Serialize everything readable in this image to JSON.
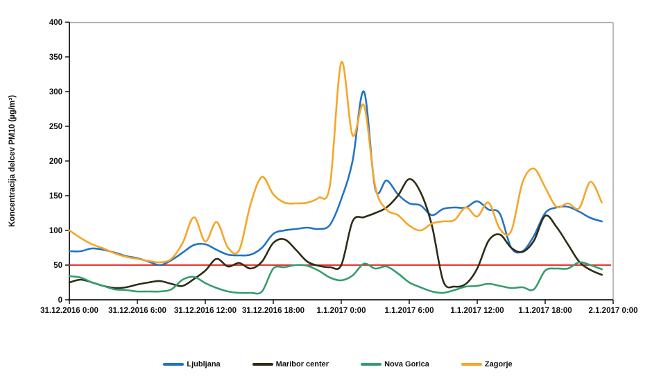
{
  "chart_data": {
    "type": "line",
    "title": "",
    "ylabel": "Koncentracija delcev PM10 (µg/m³)",
    "xlabel": "",
    "ylim": [
      0,
      400
    ],
    "y_ticks": [
      0,
      50,
      100,
      150,
      200,
      250,
      300,
      350,
      400
    ],
    "x_tick_labels": [
      "31.12.2016 0:00",
      "31.12.2016 6:00",
      "31.12.2016 12:00",
      "31.12.2016 18:00",
      "1.1.2017 0:00",
      "1.1.2017 6:00",
      "1.1.2017 12:00",
      "1.1.2017 18:00",
      "2.1.2017 0:00"
    ],
    "x_tick_step_hours": 6,
    "x_total_hours": 48,
    "x_sample_interval_hours": 1,
    "grid": false,
    "legend_position": "bottom",
    "smoothing": "spline",
    "reference_line": {
      "name": "daily-limit-line",
      "value": 50,
      "color": "#e93330"
    },
    "series": [
      {
        "name": "Ljubljana",
        "color": "#2273c4",
        "values": [
          70,
          70,
          74,
          72,
          68,
          63,
          60,
          55,
          50,
          57,
          68,
          79,
          80,
          72,
          65,
          64,
          65,
          75,
          95,
          100,
          102,
          104,
          102,
          108,
          145,
          200,
          300,
          160,
          172,
          152,
          139,
          136,
          122,
          131,
          133,
          133,
          142,
          130,
          124,
          75,
          70,
          92,
          125,
          133,
          134,
          127,
          118,
          113
        ]
      },
      {
        "name": "Maribor center",
        "color": "#2e2c15",
        "values": [
          25,
          29,
          25,
          20,
          17,
          18,
          22,
          25,
          27,
          23,
          20,
          30,
          42,
          59,
          48,
          53,
          45,
          55,
          82,
          87,
          72,
          55,
          49,
          47,
          50,
          113,
          119,
          125,
          133,
          150,
          174,
          155,
          107,
          27,
          19,
          23,
          45,
          85,
          94,
          75,
          69,
          85,
          121,
          105,
          80,
          55,
          43,
          36
        ]
      },
      {
        "name": "Nova Gorica",
        "color": "#359c6d",
        "values": [
          34,
          32,
          25,
          20,
          15,
          14,
          12,
          12,
          12,
          15,
          29,
          33,
          24,
          17,
          12,
          10,
          10,
          12,
          45,
          47,
          50,
          49,
          42,
          32,
          28,
          35,
          52,
          45,
          48,
          38,
          25,
          18,
          12,
          10,
          14,
          19,
          20,
          23,
          20,
          17,
          18,
          15,
          42,
          45,
          45,
          54,
          50,
          44
        ]
      },
      {
        "name": "Zagorje",
        "color": "#f7a528",
        "values": [
          100,
          89,
          80,
          74,
          67,
          62,
          59,
          56,
          54,
          59,
          82,
          119,
          84,
          112,
          75,
          72,
          138,
          177,
          152,
          140,
          139,
          140,
          147,
          165,
          342,
          237,
          280,
          163,
          130,
          122,
          107,
          100,
          110,
          113,
          115,
          133,
          120,
          140,
          102,
          99,
          169,
          189,
          162,
          134,
          139,
          132,
          170,
          140
        ]
      }
    ]
  }
}
